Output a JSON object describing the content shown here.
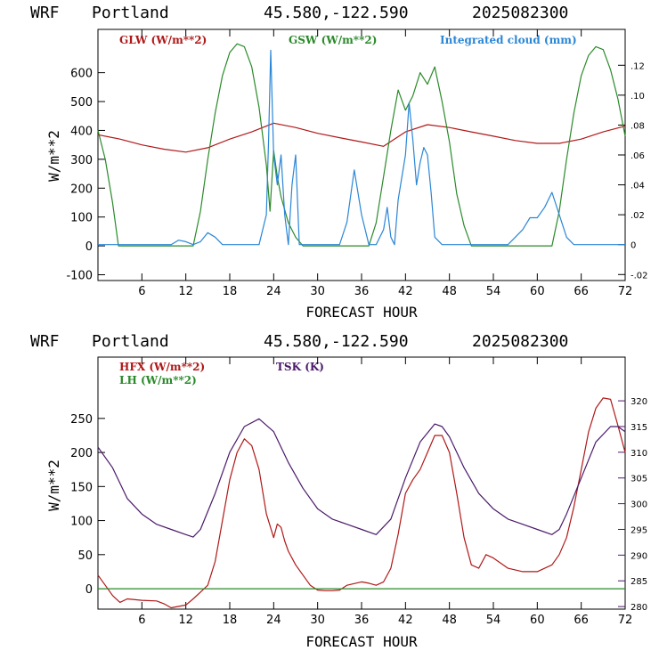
{
  "colors": {
    "glw": "#b01818",
    "gsw": "#2a8a2a",
    "cloud": "#2a86d6",
    "hfx": "#b01818",
    "lh": "#2a8a2a",
    "tsk": "#4a1a6a",
    "frame": "#000000"
  },
  "chart_data": [
    {
      "type": "line",
      "header": {
        "model": "WRF",
        "city": "Portland",
        "coords": "45.580,-122.590",
        "date": "2025082300"
      },
      "xlabel": "FORECAST HOUR",
      "ylabel": "W/m**2",
      "xlim": [
        0,
        72
      ],
      "ylim": [
        -120,
        750
      ],
      "y2lim": [
        -0.024,
        0.144
      ],
      "xticks": [
        6,
        12,
        18,
        24,
        30,
        36,
        42,
        48,
        54,
        60,
        66,
        72
      ],
      "yticks": [
        -100,
        0,
        100,
        200,
        300,
        400,
        500,
        600
      ],
      "ytick_labels": [
        "-100",
        "0",
        "100",
        "200",
        "300",
        "400",
        "500",
        "600"
      ],
      "y2ticks": [
        -0.02,
        0,
        0.02,
        0.04,
        0.06,
        0.08,
        0.1,
        0.12
      ],
      "y2tick_labels": [
        "-.02",
        "0",
        ".02",
        ".04",
        ".06",
        ".08",
        ".10",
        ".12"
      ],
      "legend": [
        "GLW (W/m**2)",
        "GSW (W/m**2)",
        "Integrated cloud (mm)"
      ],
      "series": [
        {
          "name": "GLW (W/m**2)",
          "axis": "left",
          "color": "#b01818",
          "x": [
            0,
            3,
            6,
            9,
            12,
            15,
            18,
            21,
            24,
            27,
            30,
            33,
            36,
            39,
            42,
            45,
            48,
            51,
            54,
            57,
            60,
            63,
            66,
            69,
            72
          ],
          "y": [
            385,
            370,
            350,
            335,
            325,
            340,
            370,
            395,
            425,
            410,
            390,
            375,
            360,
            345,
            395,
            420,
            410,
            395,
            380,
            365,
            355,
            355,
            370,
            395,
            415
          ]
        },
        {
          "name": "GSW (W/m**2)",
          "axis": "left",
          "color": "#2a8a2a",
          "x": [
            0,
            1,
            2,
            2.8,
            3,
            11,
            13,
            14,
            15,
            16,
            17,
            18,
            19,
            20,
            21,
            22,
            23,
            23.5,
            24,
            24.5,
            25,
            26,
            27,
            28,
            37,
            38,
            39,
            40,
            41,
            42,
            43,
            44,
            45,
            46,
            47,
            48,
            49,
            50,
            51,
            62,
            63,
            64,
            65,
            66,
            67,
            68,
            69,
            70,
            71,
            72
          ],
          "y": [
            400,
            300,
            150,
            0,
            0,
            0,
            0,
            120,
            300,
            460,
            590,
            670,
            700,
            690,
            620,
            480,
            280,
            120,
            330,
            240,
            170,
            80,
            30,
            0,
            0,
            80,
            240,
            400,
            540,
            470,
            520,
            600,
            560,
            620,
            500,
            360,
            180,
            70,
            0,
            0,
            120,
            300,
            460,
            590,
            660,
            690,
            680,
            610,
            510,
            380
          ]
        },
        {
          "name": "Integrated cloud (mm)",
          "axis": "right",
          "color": "#2a86d6",
          "x": [
            0,
            10,
            11,
            12,
            13,
            14,
            15,
            16,
            17,
            22,
            23,
            23.3,
            23.6,
            24,
            24.5,
            25,
            25.5,
            26,
            26.5,
            27,
            27.5,
            28,
            33,
            34,
            35,
            36,
            37,
            38,
            39,
            39.5,
            40,
            40.5,
            41,
            42,
            42.5,
            43,
            43.5,
            44,
            44.5,
            45,
            45.5,
            46,
            47,
            52,
            56,
            58,
            59,
            60,
            61,
            62,
            63,
            64,
            65,
            72
          ],
          "y": [
            0,
            0,
            0.003,
            0.002,
            0,
            0.002,
            0.008,
            0.005,
            0,
            0,
            0.02,
            0.07,
            0.13,
            0.06,
            0.04,
            0.06,
            0.02,
            0,
            0.04,
            0.06,
            0,
            0,
            0,
            0.015,
            0.05,
            0.02,
            0,
            0,
            0.01,
            0.025,
            0.005,
            0,
            0.03,
            0.06,
            0.095,
            0.07,
            0.04,
            0.055,
            0.065,
            0.06,
            0.035,
            0.005,
            0,
            0,
            0,
            0.01,
            0.018,
            0.018,
            0.025,
            0.035,
            0.02,
            0.005,
            0,
            0
          ]
        }
      ]
    },
    {
      "type": "line",
      "header": {
        "model": "WRF",
        "city": "Portland",
        "coords": "45.580,-122.590",
        "date": "2025082300"
      },
      "xlabel": "FORECAST HOUR",
      "ylabel": "W/m**2",
      "xlim": [
        0,
        72
      ],
      "ylim": [
        -30,
        340
      ],
      "y2lim": [
        279.5,
        328.5
      ],
      "xticks": [
        6,
        12,
        18,
        24,
        30,
        36,
        42,
        48,
        54,
        60,
        66,
        72
      ],
      "yticks": [
        0,
        50,
        100,
        150,
        200,
        250
      ],
      "ytick_labels": [
        "0",
        "50",
        "100",
        "150",
        "200",
        "250"
      ],
      "y2ticks": [
        280,
        285,
        290,
        295,
        300,
        305,
        310,
        315,
        320
      ],
      "y2tick_labels": [
        "280",
        "285",
        "290",
        "295",
        "300",
        "305",
        "310",
        "315",
        "320"
      ],
      "legend": [
        "HFX (W/m**2)",
        "LH  (W/m**2)",
        "TSK (K)"
      ],
      "series": [
        {
          "name": "HFX (W/m**2)",
          "axis": "left",
          "color": "#b01818",
          "x": [
            0,
            1,
            2,
            3,
            4,
            6,
            8,
            9,
            10,
            12,
            13,
            14,
            15,
            16,
            17,
            18,
            19,
            20,
            21,
            22,
            23,
            24,
            24.5,
            25,
            25.5,
            26,
            27,
            28,
            29,
            30,
            31,
            32,
            33,
            34,
            36,
            37,
            38,
            39,
            40,
            41,
            42,
            43,
            44,
            45,
            46,
            47,
            48,
            49,
            50,
            51,
            52,
            53,
            54,
            56,
            58,
            60,
            62,
            63,
            64,
            65,
            66,
            67,
            68,
            69,
            70,
            71,
            72
          ],
          "y": [
            20,
            5,
            -10,
            -20,
            -15,
            -17,
            -18,
            -22,
            -28,
            -24,
            -15,
            -5,
            5,
            40,
            100,
            160,
            200,
            220,
            210,
            175,
            110,
            75,
            95,
            90,
            70,
            55,
            35,
            20,
            5,
            -2,
            -3,
            -3,
            -2,
            5,
            10,
            8,
            5,
            10,
            30,
            80,
            140,
            160,
            175,
            200,
            225,
            225,
            200,
            140,
            75,
            35,
            30,
            50,
            45,
            30,
            25,
            25,
            35,
            50,
            75,
            120,
            175,
            230,
            265,
            280,
            278,
            240,
            200
          ]
        },
        {
          "name": "LH  (W/m**2)",
          "axis": "left",
          "color": "#2a8a2a",
          "x": [
            0,
            72
          ],
          "y": [
            0,
            0
          ]
        },
        {
          "name": "TSK (K)",
          "axis": "right",
          "color": "#4a1a6a",
          "x": [
            0,
            2,
            4,
            6,
            8,
            10,
            12,
            13,
            14,
            16,
            18,
            20,
            22,
            24,
            26,
            28,
            30,
            32,
            34,
            36,
            38,
            40,
            42,
            44,
            46,
            47,
            48,
            50,
            52,
            54,
            56,
            58,
            60,
            62,
            63,
            64,
            66,
            68,
            70,
            71,
            72
          ],
          "y": [
            311,
            307,
            301,
            298,
            296,
            295,
            294,
            293.5,
            295,
            302,
            310,
            315,
            316.5,
            314,
            308,
            303,
            299,
            297,
            296,
            295,
            294,
            297,
            305,
            312,
            315.5,
            315,
            313,
            307,
            302,
            299,
            297,
            296,
            295,
            294,
            295,
            298,
            305,
            312,
            315,
            315,
            314
          ]
        }
      ]
    }
  ]
}
